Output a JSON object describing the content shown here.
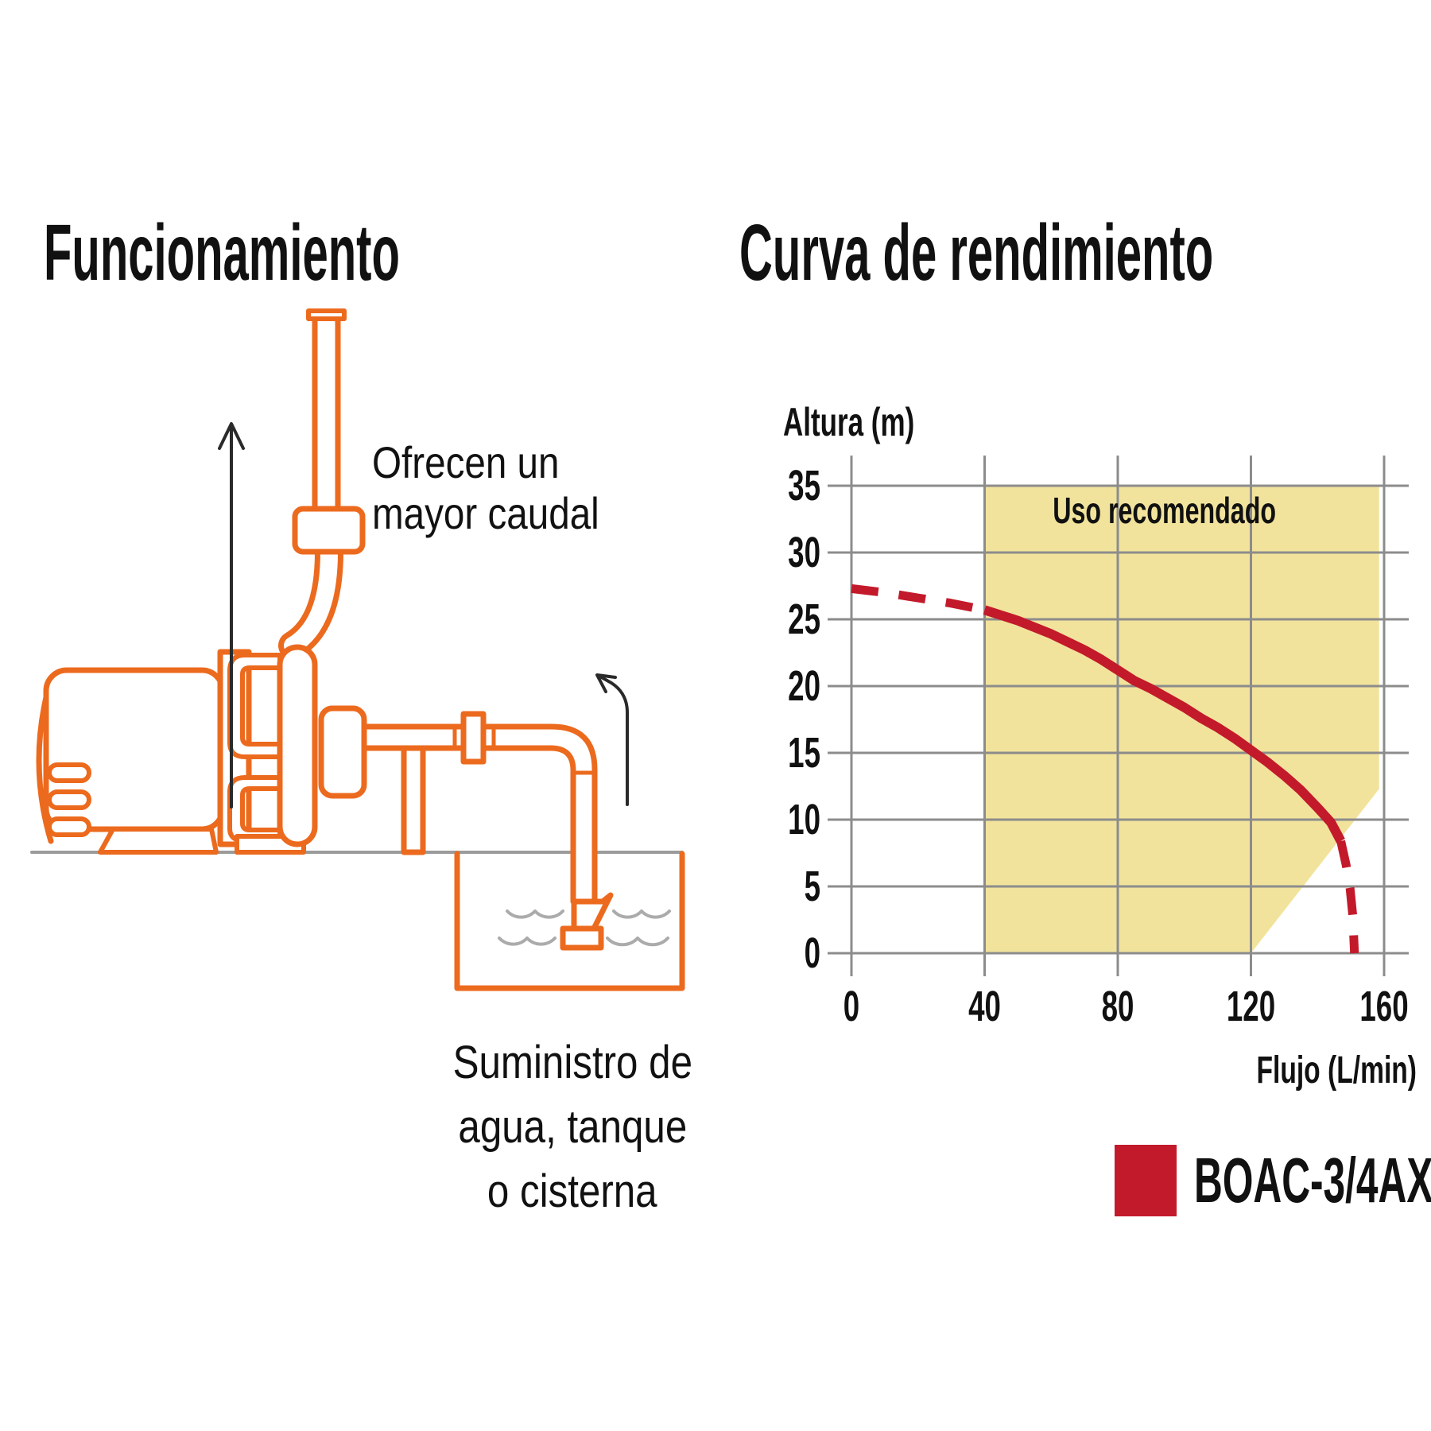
{
  "left_panel": {
    "title": "Funcionamiento",
    "flow_note_line1": "Ofrecen un",
    "flow_note_line2": "mayor caudal",
    "caption_line1": "Suministro de",
    "caption_line2": "agua, tanque",
    "caption_line3": "o cisterna",
    "diagram": {
      "pump_outline_color": "#EC6A1E",
      "ground_color": "#9B9B9B",
      "water_color": "#ABABAB",
      "arrow_color": "#2A2A2A",
      "up_arrow": "discharge-direction",
      "diagonal_arrow": "suction-direction"
    }
  },
  "right_panel": {
    "title": "Curva de rendimiento"
  },
  "chart_data": {
    "type": "line",
    "title": "Curva de rendimiento",
    "xlabel": "Flujo (L/min)",
    "ylabel": "Altura (m)",
    "xlim": [
      0,
      160
    ],
    "ylim": [
      0,
      35
    ],
    "xticks": [
      0,
      40,
      80,
      120,
      160
    ],
    "yticks": [
      0,
      5,
      10,
      15,
      20,
      25,
      30,
      35
    ],
    "grid": true,
    "grid_color": "#8C8C8C",
    "recommended_region": {
      "label": "Uso recomendado",
      "fill": "#F2E39C",
      "polygon_flow_height": [
        [
          40,
          0
        ],
        [
          40,
          35
        ],
        [
          158.5,
          35
        ],
        [
          158.5,
          12.3
        ],
        [
          120,
          0
        ]
      ],
      "label_position": [
        94,
        32.2
      ]
    },
    "series": [
      {
        "name": "BOAC-3/4AX",
        "color": "#C31A2B",
        "segments": [
          {
            "style": "dashed",
            "points": [
              [
                0,
                27.3
              ],
              [
                10,
                27.0
              ],
              [
                20,
                26.6
              ],
              [
                30,
                26.2
              ],
              [
                40,
                25.7
              ]
            ]
          },
          {
            "style": "solid",
            "points": [
              [
                40,
                25.7
              ],
              [
                45,
                25.3
              ],
              [
                50,
                24.9
              ],
              [
                55,
                24.4
              ],
              [
                60,
                23.9
              ],
              [
                65,
                23.3
              ],
              [
                70,
                22.7
              ],
              [
                75,
                22.0
              ],
              [
                80,
                21.2
              ],
              [
                85,
                20.4
              ],
              [
                90,
                19.8
              ],
              [
                95,
                19.1
              ],
              [
                100,
                18.4
              ],
              [
                105,
                17.6
              ],
              [
                110,
                16.9
              ],
              [
                115,
                16.1
              ],
              [
                120,
                15.2
              ],
              [
                125,
                14.3
              ],
              [
                130,
                13.3
              ],
              [
                135,
                12.2
              ],
              [
                140,
                10.9
              ],
              [
                144,
                9.8
              ],
              [
                147,
                8.4
              ]
            ]
          },
          {
            "style": "dashed",
            "points": [
              [
                147,
                8.4
              ],
              [
                148.6,
                6.6
              ],
              [
                149.8,
                4.8
              ],
              [
                150.6,
                2.8
              ],
              [
                151.1,
                0
              ]
            ]
          }
        ]
      }
    ],
    "legend": {
      "position": "bottom-right",
      "swatch_color": "#C31A2B",
      "label": "BOAC-3/4AX"
    }
  }
}
